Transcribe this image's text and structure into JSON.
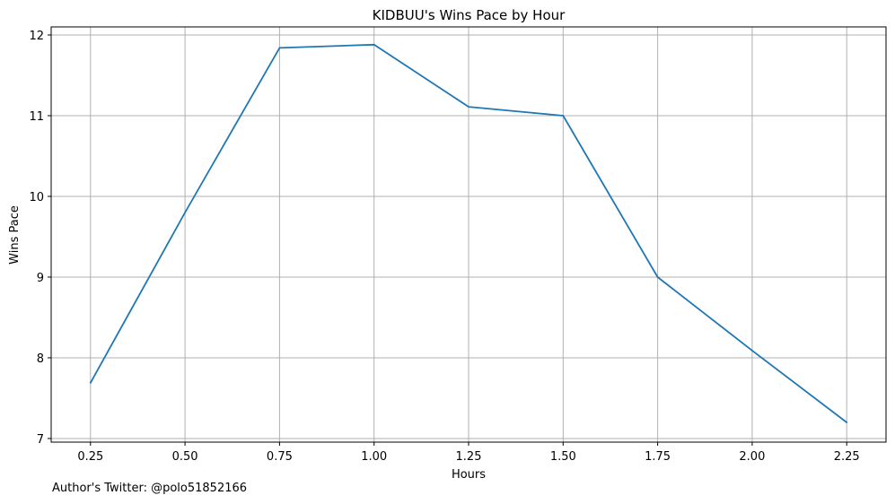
{
  "chart_data": {
    "type": "line",
    "title": "KIDBUU's Wins Pace by Hour",
    "xlabel": "Hours",
    "ylabel": "Wins Pace",
    "x": [
      0.25,
      0.5,
      0.75,
      1.0,
      1.25,
      1.5,
      1.75,
      2.0,
      2.25
    ],
    "series": [
      {
        "values": [
          7.69,
          9.8,
          11.84,
          11.88,
          11.11,
          11.0,
          9.0,
          8.09,
          7.2
        ]
      }
    ],
    "xlim": [
      0.146,
      2.354
    ],
    "ylim": [
      6.955,
      12.1
    ],
    "xticks": [
      "0.25",
      "0.50",
      "0.75",
      "1.00",
      "1.25",
      "1.50",
      "1.75",
      "2.00",
      "2.25"
    ],
    "yticks": [
      "7",
      "8",
      "9",
      "10",
      "11",
      "12"
    ],
    "grid": true,
    "line_color": "#1f77b4"
  },
  "footer": {
    "credit": "Author's Twitter: @polo51852166"
  }
}
